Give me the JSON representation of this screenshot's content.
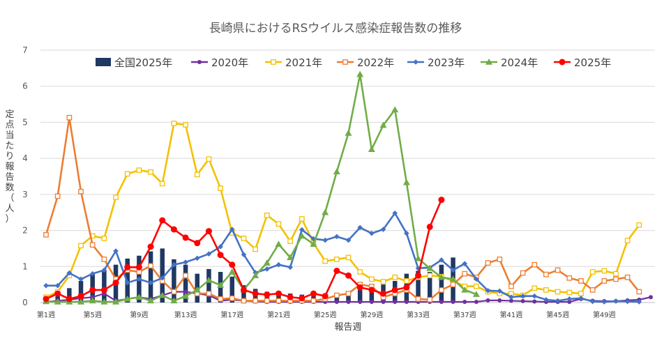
{
  "chart_data": {
    "type": "bar+line",
    "title": "長崎県におけるRSウイルス感染症報告数の推移",
    "xlabel": "報告週",
    "ylabel": "定点当たり報告数（人）",
    "ylim": [
      0,
      7
    ],
    "yticks": [
      0,
      1,
      2,
      3,
      4,
      5,
      6,
      7
    ],
    "legend_position": "top",
    "grid": "horizontal",
    "x_tick_labels": [
      "第1週",
      "第5週",
      "第9週",
      "第13週",
      "第17週",
      "第21週",
      "第25週",
      "第29週",
      "第33週",
      "第37週",
      "第41週",
      "第45週",
      "第49週"
    ],
    "x_tick_weeks": [
      1,
      5,
      9,
      13,
      17,
      21,
      25,
      29,
      33,
      37,
      41,
      45,
      49
    ],
    "weeks": 53,
    "bars": {
      "name": "全国2025年",
      "color": "#1f3864",
      "values": [
        0.08,
        0.18,
        0.4,
        0.6,
        0.8,
        0.9,
        1.05,
        1.22,
        1.3,
        1.42,
        1.5,
        1.2,
        1.05,
        0.8,
        0.93,
        0.85,
        0.72,
        0.48,
        0.38,
        0.3,
        0.28,
        0.25,
        0.22,
        0.2,
        0.22,
        0.25,
        0.3,
        0.35,
        0.45,
        0.5,
        0.6,
        0.8,
        0.88,
        0.85,
        1.05,
        1.25
      ]
    },
    "series": [
      {
        "name": "2020年",
        "color": "#7030a0",
        "marker": "circle",
        "values": [
          0.02,
          0.05,
          0.08,
          0.12,
          0.15,
          0.25,
          0.05,
          0.1,
          0.15,
          0.1,
          0.2,
          0.3,
          0.3,
          0.25,
          0.2,
          0.05,
          0.08,
          0.05,
          0.03,
          0.02,
          0.02,
          0.02,
          0.02,
          0.02,
          0.02,
          0.02,
          0.02,
          0.02,
          0.02,
          0.02,
          0.02,
          0.02,
          0.02,
          0.02,
          0.02,
          0.02,
          0.02,
          0.02,
          0.06,
          0.06,
          0.05,
          0.04,
          0.03,
          0.02,
          0.02,
          0.02,
          0.1,
          0.05,
          0.04,
          0.04,
          0.06,
          0.08,
          0.15
        ]
      },
      {
        "name": "2021年",
        "color": "#f4c000",
        "marker": "square",
        "values": [
          0.15,
          0.3,
          0.75,
          1.58,
          1.85,
          1.78,
          2.92,
          3.57,
          3.67,
          3.62,
          3.3,
          4.97,
          4.93,
          3.55,
          3.98,
          3.17,
          1.93,
          1.78,
          1.48,
          2.42,
          2.18,
          1.7,
          2.32,
          1.65,
          1.15,
          1.2,
          1.25,
          0.85,
          0.65,
          0.58,
          0.7,
          0.6,
          0.7,
          0.75,
          0.72,
          0.6,
          0.45,
          0.45,
          0.3,
          0.25,
          0.25,
          0.2,
          0.4,
          0.35,
          0.3,
          0.28,
          0.25,
          0.85,
          0.88,
          0.8,
          1.72,
          2.15
        ]
      },
      {
        "name": "2022年",
        "color": "#ed7d31",
        "marker": "square",
        "values": [
          1.88,
          2.95,
          5.13,
          3.08,
          1.6,
          1.2,
          0.65,
          0.9,
          0.85,
          1.02,
          0.6,
          0.3,
          0.75,
          0.25,
          0.25,
          0.1,
          0.12,
          0.05,
          0.05,
          0.05,
          0.05,
          0.05,
          0.05,
          0.05,
          0.1,
          0.2,
          0.25,
          0.5,
          0.45,
          0.15,
          0.25,
          0.35,
          0.1,
          0.08,
          0.35,
          0.5,
          0.8,
          0.7,
          1.1,
          1.2,
          0.45,
          0.82,
          1.05,
          0.78,
          0.9,
          0.68,
          0.6,
          0.35,
          0.6,
          0.65,
          0.7,
          0.3
        ]
      },
      {
        "name": "2023年",
        "color": "#4472c4",
        "marker": "diamond",
        "values": [
          0.47,
          0.47,
          0.82,
          0.65,
          0.8,
          0.9,
          1.43,
          0.55,
          0.65,
          0.55,
          0.68,
          1.05,
          1.12,
          1.23,
          1.35,
          1.55,
          2.03,
          1.33,
          0.83,
          0.93,
          1.05,
          0.98,
          2.02,
          1.77,
          1.73,
          1.83,
          1.73,
          2.08,
          1.92,
          2.03,
          2.48,
          1.92,
          0.95,
          0.97,
          1.18,
          0.9,
          1.08,
          0.65,
          0.33,
          0.32,
          0.15,
          0.18,
          0.18,
          0.08,
          0.05,
          0.1,
          0.12,
          0.03,
          0.02,
          0.04,
          0.03,
          0.02
        ]
      },
      {
        "name": "2024年",
        "color": "#70ad47",
        "marker": "triangle",
        "values": [
          0.03,
          0.02,
          0.02,
          0.02,
          0.05,
          0.02,
          0.02,
          0.1,
          0.15,
          0.05,
          0.2,
          0.05,
          0.18,
          0.35,
          0.62,
          0.48,
          0.85,
          0.35,
          0.75,
          1.1,
          1.62,
          1.25,
          1.85,
          1.62,
          2.5,
          3.63,
          4.7,
          6.33,
          4.25,
          4.92,
          5.35,
          3.33,
          1.22,
          0.95,
          0.7,
          0.65,
          0.35,
          0.23
        ]
      },
      {
        "name": "2025年",
        "color": "#ff0000",
        "marker": "circle",
        "values": [
          0.1,
          0.25,
          0.1,
          0.18,
          0.35,
          0.35,
          0.55,
          0.98,
          0.98,
          1.55,
          2.28,
          2.03,
          1.8,
          1.65,
          1.98,
          1.32,
          1.05,
          0.35,
          0.25,
          0.22,
          0.25,
          0.15,
          0.12,
          0.25,
          0.18,
          0.88,
          0.75,
          0.42,
          0.35,
          0.25,
          0.35,
          0.42,
          0.75,
          2.1,
          2.85
        ]
      }
    ]
  }
}
